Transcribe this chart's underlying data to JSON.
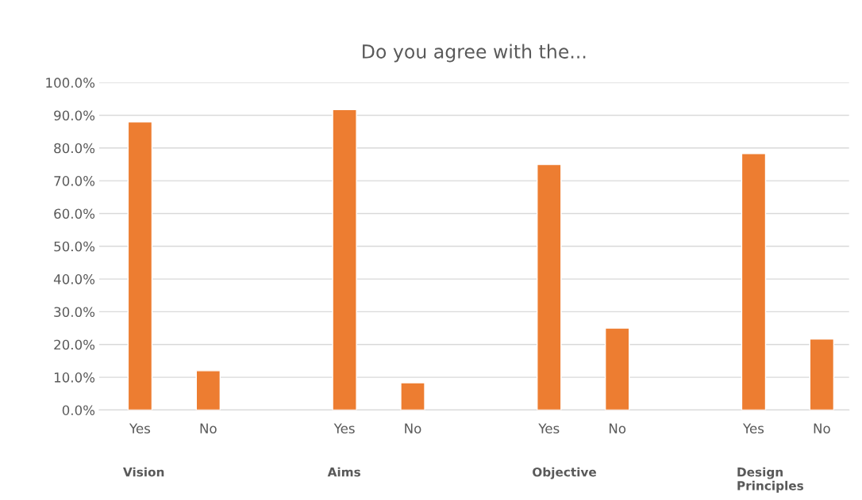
{
  "chart_data": {
    "type": "bar",
    "title": "Do you agree with the...",
    "categories": [
      "Yes",
      "No",
      null,
      "Yes",
      "No",
      null,
      "Yes",
      "No",
      null,
      "Yes",
      "No"
    ],
    "values": [
      88.0,
      12.0,
      null,
      91.7,
      8.3,
      null,
      75.0,
      25.0,
      null,
      78.3,
      21.7
    ],
    "color": "#ed7d31",
    "annotations": [
      "Vision",
      "Aims",
      "Objective",
      "Design\nPrinciples"
    ],
    "ylim": [
      0,
      100
    ],
    "yticks": [
      {
        "value": 0,
        "label": "0.0%"
      },
      {
        "value": 10,
        "label": "10.0%"
      },
      {
        "value": 20,
        "label": "20.0%"
      },
      {
        "value": 30,
        "label": "30.0%"
      },
      {
        "value": 40,
        "label": "40.0%"
      },
      {
        "value": 50,
        "label": "50.0%"
      },
      {
        "value": 60,
        "label": "60.0%"
      },
      {
        "value": 70,
        "label": "70.0%"
      },
      {
        "value": 80,
        "label": "80.0%"
      },
      {
        "value": 90,
        "label": "90.0%"
      },
      {
        "value": 100,
        "label": "100.0%"
      }
    ],
    "grid": "y"
  }
}
